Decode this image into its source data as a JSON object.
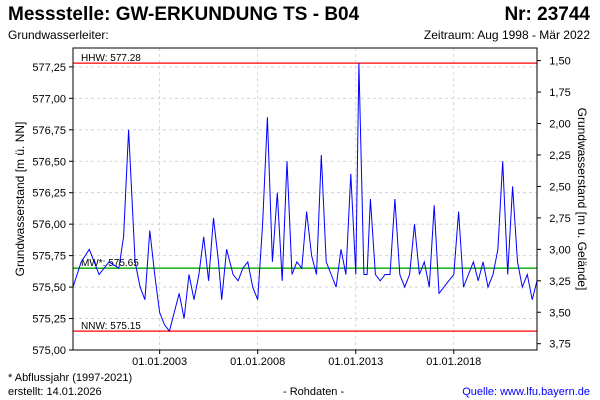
{
  "header": {
    "title": "Messstelle: GW-ERKUNDUNG TS - B04",
    "number": "Nr: 23744",
    "aquifer": "Grundwasserleiter:",
    "period": "Zeitraum: Aug 1998 - Mär 2022"
  },
  "footer": {
    "footnote": "* Abflussjahr (1997-2021)",
    "created": "erstellt:  14.01.2026",
    "raw": "- Rohdaten -",
    "source": "Quelle: www.lfu.bayern.de"
  },
  "colors": {
    "series": "#0000ff",
    "extreme_lines": "#ff0000",
    "mean_line": "#00aa00",
    "grid": "#cccccc"
  },
  "chart_data": {
    "type": "line",
    "ylabel": "Grundwasserstand [m ü. NN]",
    "y2label": "Grundwasserstand [m u. Gelände]",
    "ylim": [
      575.0,
      577.4
    ],
    "y2lim": [
      3.8,
      1.4
    ],
    "xlim": [
      "1998-08-01",
      "2022-03-31"
    ],
    "yticks": [
      "575,00",
      "575,25",
      "575,50",
      "575,75",
      "576,00",
      "576,25",
      "576,50",
      "576,75",
      "577,00",
      "577,25"
    ],
    "y2ticks": [
      "1,50",
      "1,75",
      "2,00",
      "2,25",
      "2,50",
      "2,75",
      "3,00",
      "3,25",
      "3,50",
      "3,75"
    ],
    "xticks": [
      {
        "date": "2003-01-01",
        "label": "01.01.2003"
      },
      {
        "date": "2008-01-01",
        "label": "01.01.2008"
      },
      {
        "date": "2013-01-01",
        "label": "01.01.2013"
      },
      {
        "date": "2018-01-01",
        "label": "01.01.2018"
      }
    ],
    "grid": true,
    "reference_lines": [
      {
        "label": "HHW: 577.28",
        "value": 577.28,
        "color": "#ff0000"
      },
      {
        "label": "MW*: 575.65",
        "value": 575.65,
        "color": "#00aa00"
      },
      {
        "label": "NNW: 575.15",
        "value": 575.15,
        "color": "#ff0000"
      }
    ],
    "series": [
      {
        "color": "#0000ff",
        "x": [
          "1998-08-01",
          "1999-01-01",
          "1999-06-01",
          "1999-12-01",
          "2000-06-01",
          "2000-12-01",
          "2001-03-01",
          "2001-06-01",
          "2001-10-01",
          "2002-01-01",
          "2002-04-01",
          "2002-07-01",
          "2002-10-01",
          "2003-01-01",
          "2003-04-01",
          "2003-07-01",
          "2003-10-01",
          "2004-01-01",
          "2004-04-01",
          "2004-07-01",
          "2004-10-01",
          "2005-01-01",
          "2005-04-01",
          "2005-07-01",
          "2005-10-01",
          "2006-01-01",
          "2006-03-01",
          "2006-06-01",
          "2006-10-01",
          "2007-01-01",
          "2007-04-01",
          "2007-07-01",
          "2007-10-01",
          "2008-01-01",
          "2008-04-01",
          "2008-07-01",
          "2008-10-01",
          "2009-01-01",
          "2009-04-01",
          "2009-07-01",
          "2009-10-01",
          "2010-01-01",
          "2010-04-01",
          "2010-07-01",
          "2010-10-01",
          "2011-01-01",
          "2011-04-01",
          "2011-07-01",
          "2011-10-01",
          "2012-01-01",
          "2012-04-01",
          "2012-07-01",
          "2012-10-01",
          "2013-01-01",
          "2013-03-01",
          "2013-06-01",
          "2013-08-01",
          "2013-10-01",
          "2014-01-01",
          "2014-04-01",
          "2014-07-01",
          "2014-10-01",
          "2015-01-01",
          "2015-04-01",
          "2015-07-01",
          "2015-10-01",
          "2016-01-01",
          "2016-04-01",
          "2016-07-01",
          "2016-10-01",
          "2017-01-01",
          "2017-04-01",
          "2017-07-01",
          "2017-10-01",
          "2018-01-01",
          "2018-04-01",
          "2018-07-01",
          "2018-10-01",
          "2019-01-01",
          "2019-04-01",
          "2019-07-01",
          "2019-10-01",
          "2020-01-01",
          "2020-04-01",
          "2020-07-01",
          "2020-10-01",
          "2021-01-01",
          "2021-04-01",
          "2021-07-01",
          "2021-10-01",
          "2022-01-01",
          "2022-03-31"
        ],
        "values": [
          575.5,
          575.7,
          575.8,
          575.6,
          575.7,
          575.65,
          575.9,
          576.75,
          575.7,
          575.5,
          575.4,
          575.95,
          575.6,
          575.3,
          575.2,
          575.15,
          575.3,
          575.45,
          575.25,
          575.6,
          575.4,
          575.6,
          575.9,
          575.55,
          576.05,
          575.7,
          575.4,
          575.8,
          575.6,
          575.55,
          575.65,
          575.7,
          575.5,
          575.4,
          576.0,
          576.85,
          575.7,
          576.25,
          575.55,
          576.5,
          575.6,
          575.7,
          575.65,
          576.1,
          575.75,
          575.6,
          576.55,
          575.7,
          575.6,
          575.5,
          575.8,
          575.6,
          576.4,
          575.6,
          577.28,
          575.6,
          575.6,
          576.2,
          575.6,
          575.55,
          575.6,
          575.6,
          576.2,
          575.6,
          575.5,
          575.6,
          576.0,
          575.6,
          575.7,
          575.5,
          576.15,
          575.45,
          575.5,
          575.55,
          575.6,
          576.1,
          575.5,
          575.6,
          575.7,
          575.55,
          575.7,
          575.5,
          575.6,
          575.8,
          576.5,
          575.6,
          576.3,
          575.7,
          575.5,
          575.6,
          575.4,
          575.55
        ]
      }
    ]
  }
}
